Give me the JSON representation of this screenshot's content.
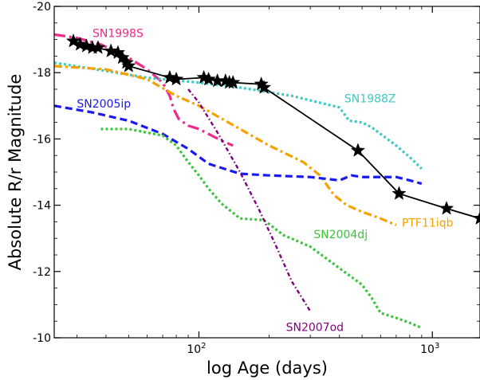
{
  "chart_data": {
    "type": "line",
    "xlabel": "log Age (days)",
    "ylabel": "Absolute R/r Magnitude",
    "x_scale": "log",
    "xlim": [
      24,
      1600
    ],
    "ylim": [
      -10,
      -20
    ],
    "y_inverted": true,
    "x_ticks": [
      {
        "value": 100,
        "base": "10",
        "exp": "2"
      },
      {
        "value": 1000,
        "base": "10",
        "exp": "3"
      }
    ],
    "y_ticks": [
      "-20",
      "-18",
      "-16",
      "-14",
      "-12",
      "-10"
    ],
    "y_tick_values": [
      -20,
      -18,
      -16,
      -14,
      -12,
      -10
    ],
    "grid": false,
    "series": [
      {
        "name": "SN1998S",
        "color": "#ee2a8a",
        "style": "dashdot-long",
        "label_at": [
          35,
          -19.08
        ],
        "points": [
          [
            24,
            -19.15
          ],
          [
            30,
            -19.05
          ],
          [
            38,
            -18.85
          ],
          [
            50,
            -18.45
          ],
          [
            60,
            -18.1
          ],
          [
            70,
            -17.7
          ],
          [
            75,
            -17.3
          ],
          [
            78,
            -16.9
          ],
          [
            82,
            -16.6
          ],
          [
            90,
            -16.4
          ],
          [
            100,
            -16.3
          ],
          [
            110,
            -16.15
          ],
          [
            125,
            -15.95
          ],
          [
            140,
            -15.8
          ]
        ]
      },
      {
        "name": "SN1988Z",
        "color": "#3ec9c4",
        "style": "dotted",
        "label_at": [
          420,
          -17.1
        ],
        "points": [
          [
            24,
            -18.3
          ],
          [
            40,
            -18.05
          ],
          [
            60,
            -17.85
          ],
          [
            100,
            -17.7
          ],
          [
            150,
            -17.55
          ],
          [
            250,
            -17.3
          ],
          [
            400,
            -16.95
          ],
          [
            440,
            -16.55
          ],
          [
            500,
            -16.5
          ],
          [
            550,
            -16.35
          ],
          [
            600,
            -16.15
          ],
          [
            700,
            -15.8
          ],
          [
            800,
            -15.45
          ],
          [
            900,
            -15.1
          ]
        ]
      },
      {
        "name": "PTF11iqb",
        "color": "#f5a200",
        "style": "dashdot",
        "label_at": [
          740,
          -13.35
        ],
        "points": [
          [
            24,
            -18.2
          ],
          [
            40,
            -18.1
          ],
          [
            60,
            -17.8
          ],
          [
            80,
            -17.3
          ],
          [
            100,
            -17.0
          ],
          [
            150,
            -16.3
          ],
          [
            200,
            -15.8
          ],
          [
            280,
            -15.3
          ],
          [
            330,
            -14.9
          ],
          [
            380,
            -14.3
          ],
          [
            430,
            -14.0
          ],
          [
            500,
            -13.8
          ],
          [
            600,
            -13.6
          ],
          [
            700,
            -13.4
          ]
        ]
      },
      {
        "name": "SN2005ip",
        "color": "#1a1aee",
        "style": "dashed",
        "label_at": [
          30,
          -16.95
        ],
        "points": [
          [
            24,
            -17.0
          ],
          [
            35,
            -16.8
          ],
          [
            50,
            -16.55
          ],
          [
            70,
            -16.15
          ],
          [
            90,
            -15.7
          ],
          [
            110,
            -15.25
          ],
          [
            150,
            -14.95
          ],
          [
            200,
            -14.9
          ],
          [
            300,
            -14.85
          ],
          [
            400,
            -14.75
          ],
          [
            450,
            -14.9
          ],
          [
            500,
            -14.85
          ],
          [
            700,
            -14.85
          ],
          [
            800,
            -14.75
          ],
          [
            900,
            -14.65
          ]
        ]
      },
      {
        "name": "SN2004dj",
        "color": "#3ec23e",
        "style": "dotted",
        "label_at": [
          310,
          -13.0
        ],
        "points": [
          [
            38,
            -16.3
          ],
          [
            50,
            -16.3
          ],
          [
            70,
            -16.1
          ],
          [
            80,
            -15.8
          ],
          [
            90,
            -15.3
          ],
          [
            100,
            -14.9
          ],
          [
            110,
            -14.5
          ],
          [
            125,
            -14.05
          ],
          [
            150,
            -13.6
          ],
          [
            190,
            -13.55
          ],
          [
            230,
            -13.1
          ],
          [
            300,
            -12.75
          ],
          [
            400,
            -12.1
          ],
          [
            500,
            -11.6
          ],
          [
            550,
            -11.2
          ],
          [
            600,
            -10.75
          ],
          [
            700,
            -10.6
          ],
          [
            800,
            -10.45
          ],
          [
            900,
            -10.3
          ]
        ]
      },
      {
        "name": "SN2007od",
        "color": "#7f007f",
        "style": "dashdot-fine",
        "label_at": [
          236,
          -10.2
        ],
        "points": [
          [
            90,
            -17.5
          ],
          [
            100,
            -17.1
          ],
          [
            120,
            -16.2
          ],
          [
            150,
            -15.0
          ],
          [
            180,
            -13.9
          ],
          [
            210,
            -12.9
          ],
          [
            250,
            -11.7
          ],
          [
            300,
            -10.8
          ]
        ]
      },
      {
        "name": "",
        "color": "#000000",
        "style": "solid-stars",
        "points": [
          [
            29,
            -18.95
          ],
          [
            31,
            -18.85
          ],
          [
            33,
            -18.8
          ],
          [
            35,
            -18.75
          ],
          [
            37,
            -18.75
          ],
          [
            42,
            -18.65
          ],
          [
            45,
            -18.6
          ],
          [
            47,
            -18.45
          ],
          [
            49,
            -18.3
          ],
          [
            50,
            -18.2
          ],
          [
            75,
            -17.85
          ],
          [
            80,
            -17.8
          ],
          [
            105,
            -17.85
          ],
          [
            110,
            -17.8
          ],
          [
            120,
            -17.75
          ],
          [
            130,
            -17.75
          ],
          [
            135,
            -17.7
          ],
          [
            140,
            -17.7
          ],
          [
            185,
            -17.65
          ],
          [
            190,
            -17.55
          ],
          [
            480,
            -15.65
          ],
          [
            720,
            -14.35
          ],
          [
            1150,
            -13.9
          ],
          [
            1600,
            -13.6
          ]
        ]
      }
    ]
  }
}
